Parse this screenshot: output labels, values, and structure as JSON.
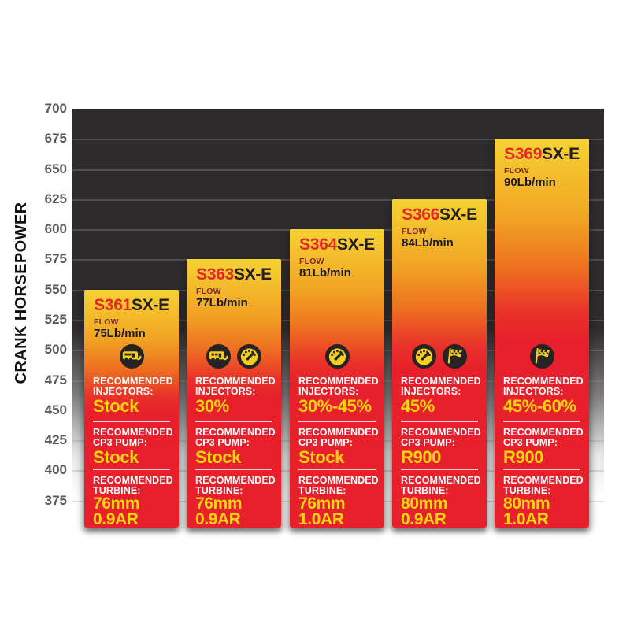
{
  "y_axis": {
    "title": "CRANK HORSEPOWER",
    "ticks": [
      700,
      675,
      650,
      625,
      600,
      575,
      550,
      525,
      500,
      475,
      450,
      425,
      400,
      375
    ]
  },
  "colors": {
    "plot_background_dark": "#2e2b2c",
    "tick_label": "#58585a",
    "bar_top_yellow": "#f5d233",
    "bar_bottom_red": "#e7202b",
    "model_prefix_red": "#e42a26",
    "model_suffix_black": "#231f20",
    "flow_label_maroon": "#7d2b1e",
    "section_value_yellow": "#ffd60c",
    "icon_circle_dark": "#262324",
    "icon_glyph_yellow": "#f5cf1e"
  },
  "chart_data": {
    "type": "bar",
    "title": "",
    "xlabel": "",
    "ylabel": "CRANK HORSEPOWER",
    "ylim": [
      350,
      700
    ],
    "grid": true,
    "gridline_step": 25,
    "categories": [
      "S361SX-E",
      "S363SX-E",
      "S364SX-E",
      "S366SX-E",
      "S369SX-E"
    ],
    "values": [
      550,
      575,
      600,
      625,
      675
    ],
    "flow_lb_per_min": [
      75,
      77,
      81,
      84,
      90
    ],
    "bars": [
      {
        "model_prefix": "S361",
        "model_suffix": "SX-E",
        "flow_label": "FLOW",
        "flow_value": "75Lb/min",
        "crank_horsepower": 550,
        "icons": [
          "rv-icon"
        ],
        "injectors": {
          "label1": "RECOMMENDED",
          "label2": "INJECTORS:",
          "value": "Stock"
        },
        "pump": {
          "label1": "RECOMMENDED",
          "label2": "CP3 PUMP:",
          "value": "Stock"
        },
        "turbine": {
          "label1": "RECOMMENDED",
          "label2": "TURBINE:",
          "value1": "76mm",
          "value2": "0.9AR"
        }
      },
      {
        "model_prefix": "S363",
        "model_suffix": "SX-E",
        "flow_label": "FLOW",
        "flow_value": "77Lb/min",
        "crank_horsepower": 575,
        "icons": [
          "rv-icon",
          "gauge-icon"
        ],
        "injectors": {
          "label1": "RECOMMENDED",
          "label2": "INJECTORS:",
          "value": "30%"
        },
        "pump": {
          "label1": "RECOMMENDED",
          "label2": "CP3 PUMP:",
          "value": "Stock"
        },
        "turbine": {
          "label1": "RECOMMENDED",
          "label2": "TURBINE:",
          "value1": "76mm",
          "value2": "0.9AR"
        }
      },
      {
        "model_prefix": "S364",
        "model_suffix": "SX-E",
        "flow_label": "FLOW",
        "flow_value": "81Lb/min",
        "crank_horsepower": 600,
        "icons": [
          "gauge-icon"
        ],
        "injectors": {
          "label1": "RECOMMENDED",
          "label2": "INJECTORS:",
          "value": "30%-45%"
        },
        "pump": {
          "label1": "RECOMMENDED",
          "label2": "CP3 PUMP:",
          "value": "Stock"
        },
        "turbine": {
          "label1": "RECOMMENDED",
          "label2": "TURBINE:",
          "value1": "76mm",
          "value2": "1.0AR"
        }
      },
      {
        "model_prefix": "S366",
        "model_suffix": "SX-E",
        "flow_label": "FLOW",
        "flow_value": "84Lb/min",
        "crank_horsepower": 625,
        "icons": [
          "gauge-icon",
          "flag-icon"
        ],
        "injectors": {
          "label1": "RECOMMENDED",
          "label2": "INJECTORS:",
          "value": "45%"
        },
        "pump": {
          "label1": "RECOMMENDED",
          "label2": "CP3 PUMP:",
          "value": "R900"
        },
        "turbine": {
          "label1": "RECOMMENDED",
          "label2": "TURBINE:",
          "value1": "80mm",
          "value2": "0.9AR"
        }
      },
      {
        "model_prefix": "S369",
        "model_suffix": "SX-E",
        "flow_label": "FLOW",
        "flow_value": "90Lb/min",
        "crank_horsepower": 675,
        "icons": [
          "flag-icon"
        ],
        "injectors": {
          "label1": "RECOMMENDED",
          "label2": "INJECTORS:",
          "value": "45%-60%"
        },
        "pump": {
          "label1": "RECOMMENDED",
          "label2": "CP3 PUMP:",
          "value": "R900"
        },
        "turbine": {
          "label1": "RECOMMENDED",
          "label2": "TURBINE:",
          "value1": "80mm",
          "value2": "1.0AR"
        }
      }
    ]
  }
}
